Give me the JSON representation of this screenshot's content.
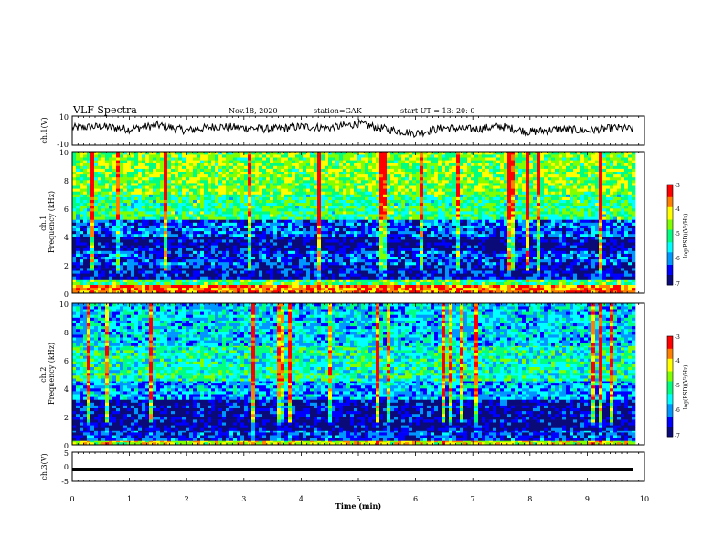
{
  "header": {
    "title": "VLF Spectra",
    "date": "Nov.18, 2020",
    "station": "station=GAK",
    "start": "start  UT =   13: 20: 0"
  },
  "colors": {
    "colormap": [
      "#0a0a78",
      "#0000ff",
      "#0096ff",
      "#00ffff",
      "#00ff80",
      "#80ff00",
      "#ffff00",
      "#ff8000",
      "#ff0000",
      "#ffffff"
    ],
    "waveform": "#000000",
    "ch3_line": "#000000"
  },
  "chart_data": [
    {
      "type": "line",
      "name": "ch1-waveform",
      "ylabel": "ch.1(V)",
      "ylim": [
        -10,
        10
      ],
      "yticks": [
        "10",
        "-10"
      ],
      "xlim": [
        0,
        10
      ],
      "x": [
        0,
        0.5,
        1,
        1.5,
        2,
        2.5,
        3,
        3.5,
        4,
        4.5,
        5,
        5.5,
        6,
        6.5,
        7,
        7.5,
        8,
        8.5,
        9,
        9.5,
        9.8
      ],
      "y": [
        2,
        3,
        1,
        4,
        0,
        3,
        2,
        1,
        3,
        2,
        5,
        1,
        -2,
        2,
        1,
        3,
        -1,
        1,
        0,
        2,
        1
      ]
    },
    {
      "type": "heatmap",
      "name": "ch1-spectrogram",
      "ylabel": "ch.1\nFrequency (kHz)",
      "ylim": [
        0,
        10
      ],
      "yticks": [
        "0",
        "2",
        "4",
        "6",
        "8",
        "10"
      ],
      "xlim": [
        0,
        10
      ],
      "colorbar": {
        "label": "log(PSD)(V²/Hz)",
        "ticks": [
          "-3",
          "-4",
          "-5",
          "-6",
          "-7"
        ],
        "range": [
          -7,
          -3
        ]
      },
      "band_profile": [
        {
          "f": [
            0.0,
            0.6
          ],
          "level": -3.6
        },
        {
          "f": [
            0.6,
            1.0
          ],
          "level": -4.9
        },
        {
          "f": [
            1.0,
            2.0
          ],
          "level": -6.5
        },
        {
          "f": [
            2.0,
            3.0
          ],
          "level": -6.2
        },
        {
          "f": [
            3.0,
            4.0
          ],
          "level": -6.7
        },
        {
          "f": [
            4.0,
            5.2
          ],
          "level": -6.1
        },
        {
          "f": [
            5.2,
            7.0
          ],
          "level": -5.0
        },
        {
          "f": [
            7.0,
            10.0
          ],
          "level": -4.6
        }
      ]
    },
    {
      "type": "heatmap",
      "name": "ch2-spectrogram",
      "ylabel": "ch.2\nFrequency (kHz)",
      "ylim": [
        0,
        10
      ],
      "yticks": [
        "0",
        "2",
        "4",
        "6",
        "8",
        "10"
      ],
      "xlim": [
        0,
        10
      ],
      "colorbar": {
        "label": "log(PSD)(V²/Hz)",
        "ticks": [
          "-3",
          "-4",
          "-5",
          "-6",
          "-7"
        ],
        "range": [
          -7,
          -3
        ]
      },
      "band_profile": [
        {
          "f": [
            0.0,
            0.3
          ],
          "level": -4.2
        },
        {
          "f": [
            0.3,
            1.0
          ],
          "level": -6.3
        },
        {
          "f": [
            1.0,
            2.0
          ],
          "level": -6.7
        },
        {
          "f": [
            2.0,
            3.2
          ],
          "level": -6.6
        },
        {
          "f": [
            3.2,
            4.5
          ],
          "level": -5.8
        },
        {
          "f": [
            4.5,
            7.0
          ],
          "level": -5.2
        },
        {
          "f": [
            7.0,
            10.0
          ],
          "level": -5.6
        }
      ]
    },
    {
      "type": "line",
      "name": "ch3-waveform",
      "ylabel": "ch.3(V)",
      "ylim": [
        -5,
        5
      ],
      "yticks": [
        "5",
        "0",
        "-5"
      ],
      "xlim": [
        0,
        10
      ],
      "x": [
        0,
        9.8
      ],
      "y": [
        -1,
        -1
      ]
    }
  ],
  "xaxis": {
    "label": "Time  (min)",
    "ticks": [
      "0",
      "1",
      "2",
      "3",
      "4",
      "5",
      "6",
      "7",
      "8",
      "9",
      "10"
    ],
    "range": [
      0,
      10
    ]
  }
}
